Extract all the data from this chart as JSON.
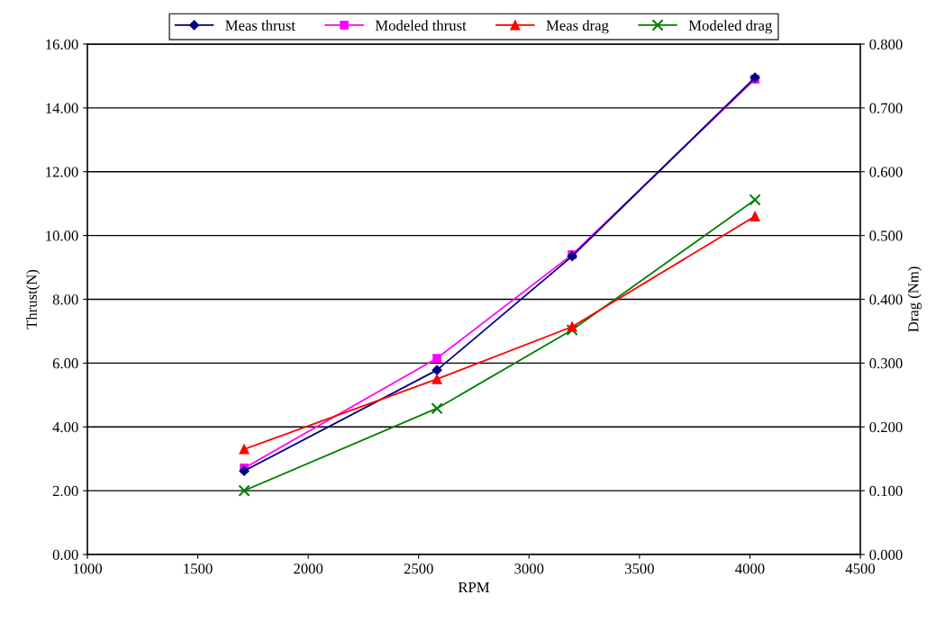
{
  "chart_data": {
    "type": "line",
    "xlabel": "RPM",
    "ylabel": "Thrust(N)",
    "y2label": "Drag (Nm)",
    "x": [
      1710,
      2583,
      3195,
      4023
    ],
    "series": [
      {
        "name": "Meas thrust",
        "color": "#000080",
        "marker": "diamond",
        "values": [
          2.62,
          5.78,
          9.35,
          14.95
        ]
      },
      {
        "name": "Modeled thrust",
        "color": "#ff00ff",
        "marker": "square",
        "values": [
          2.71,
          6.15,
          9.4,
          14.9
        ]
      },
      {
        "name": "Meas drag",
        "color": "#ff0000",
        "marker": "triangle",
        "axis": "y2",
        "values": [
          0.165,
          0.275,
          0.357,
          0.53
        ]
      },
      {
        "name": "Modeled drag",
        "color": "#008000",
        "marker": "cross",
        "axis": "y2",
        "values": [
          0.1,
          0.229,
          0.352,
          0.556
        ]
      }
    ],
    "xlim": [
      1000,
      4500
    ],
    "xticks": [
      1000,
      1500,
      2000,
      2500,
      3000,
      3500,
      4000,
      4500
    ],
    "ylim": [
      0,
      16
    ],
    "yticks": [
      {
        "value": 0,
        "label": "0.00"
      },
      {
        "value": 2,
        "label": "2.00"
      },
      {
        "value": 4,
        "label": "4.00"
      },
      {
        "value": 6,
        "label": "6.00"
      },
      {
        "value": 8,
        "label": "8.00"
      },
      {
        "value": 10,
        "label": "10.00"
      },
      {
        "value": 12,
        "label": "12.00"
      },
      {
        "value": 14,
        "label": "14.00"
      },
      {
        "value": 16,
        "label": "16.00"
      }
    ],
    "y2lim": [
      0,
      0.8
    ],
    "y2ticks": [
      {
        "value": 0,
        "label": "0.000"
      },
      {
        "value": 0.1,
        "label": "0.100"
      },
      {
        "value": 0.2,
        "label": "0.200"
      },
      {
        "value": 0.3,
        "label": "0.300"
      },
      {
        "value": 0.4,
        "label": "0.400"
      },
      {
        "value": 0.5,
        "label": "0.500"
      },
      {
        "value": 0.6,
        "label": "0.600"
      },
      {
        "value": 0.7,
        "label": "0.700"
      },
      {
        "value": 0.8,
        "label": "0.800"
      }
    ],
    "grid": "y",
    "legend": "top",
    "line_style": "solid"
  }
}
